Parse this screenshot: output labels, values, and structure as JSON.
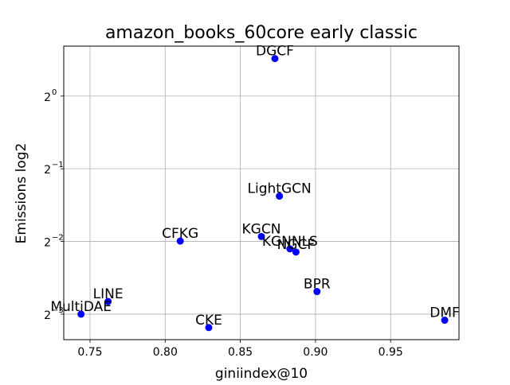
{
  "chart_data": {
    "type": "scatter",
    "title": "amazon_books_60core early classic",
    "xlabel": "giniindex@10",
    "ylabel": "Emissions log2",
    "y_scale": "log2",
    "xlim": [
      0.7325,
      0.9955
    ],
    "ylim": [
      0.098,
      1.61
    ],
    "x_ticks": [
      {
        "value": 0.75,
        "label": "0.75"
      },
      {
        "value": 0.8,
        "label": "0.80"
      },
      {
        "value": 0.85,
        "label": "0.85"
      },
      {
        "value": 0.9,
        "label": "0.90"
      },
      {
        "value": 0.95,
        "label": "0.95"
      }
    ],
    "y_ticks": [
      {
        "value": 1.0,
        "base": "2",
        "exp": "0"
      },
      {
        "value": 0.5,
        "base": "2",
        "exp": "−1"
      },
      {
        "value": 0.25,
        "base": "2",
        "exp": "−2"
      },
      {
        "value": 0.125,
        "base": "2",
        "exp": "−3"
      }
    ],
    "grid": true,
    "marker_color": "#0000ff",
    "points": [
      {
        "label": "DGCF",
        "x": 0.873,
        "y": 1.43
      },
      {
        "label": "LightGCN",
        "x": 0.876,
        "y": 0.385
      },
      {
        "label": "KGCN",
        "x": 0.864,
        "y": 0.262
      },
      {
        "label": "KGNNLS",
        "x": 0.883,
        "y": 0.233
      },
      {
        "label": "NGCF",
        "x": 0.887,
        "y": 0.226
      },
      {
        "label": "CFKG",
        "x": 0.81,
        "y": 0.251
      },
      {
        "label": "BPR",
        "x": 0.901,
        "y": 0.155
      },
      {
        "label": "LINE",
        "x": 0.762,
        "y": 0.141
      },
      {
        "label": "MultiDAE",
        "x": 0.744,
        "y": 0.125
      },
      {
        "label": "CKE",
        "x": 0.829,
        "y": 0.11
      },
      {
        "label": "DMF",
        "x": 0.986,
        "y": 0.118
      }
    ]
  }
}
